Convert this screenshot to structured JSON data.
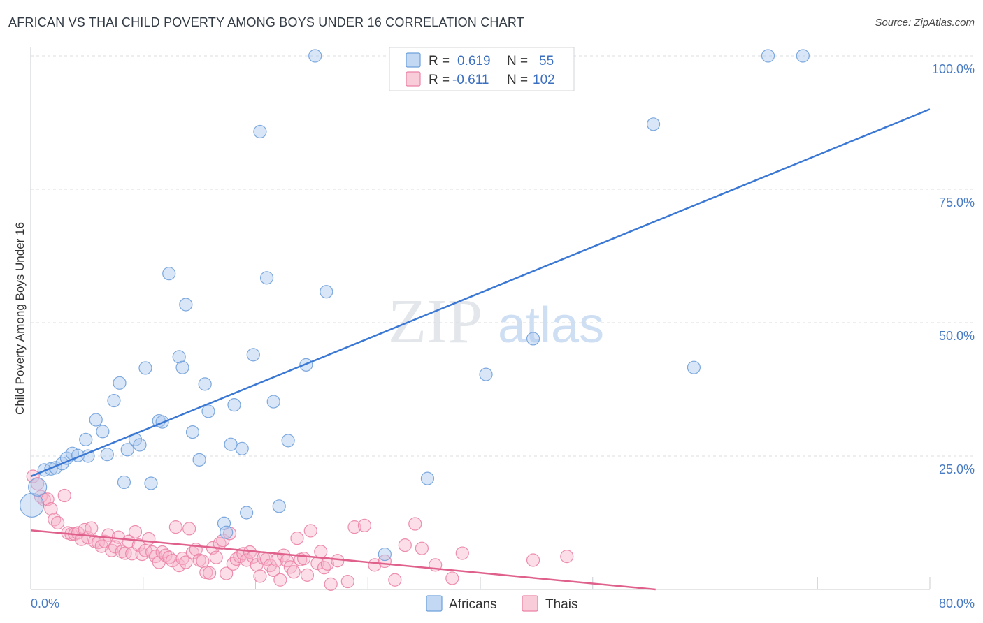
{
  "header": {
    "title": "AFRICAN VS THAI CHILD POVERTY AMONG BOYS UNDER 16 CORRELATION CHART",
    "source": "Source: ZipAtlas.com"
  },
  "watermark": {
    "part1": "ZIP",
    "part2": "atlas"
  },
  "colors": {
    "africans": "#6fa0dc",
    "africans_fill": "#aac8ee",
    "africans_line": "#3a78d4",
    "thais": "#ec82a6",
    "thais_fill": "#f6b6cb",
    "thais_line": "#e0608c",
    "tick_text": "#4a7cc4",
    "grid": "#d8dce2"
  },
  "stats_legend": {
    "rows": [
      {
        "r_label": "R =",
        "r_value": "0.619",
        "n_label": "N =",
        "n_value": "55"
      },
      {
        "r_label": "R =",
        "r_value": "-0.611",
        "n_label": "N =",
        "n_value": "102"
      }
    ]
  },
  "bottom_legend": {
    "items": [
      "Africans",
      "Thais"
    ]
  },
  "chart_data": {
    "type": "scatter",
    "title": "AFRICAN VS THAI CHILD POVERTY AMONG BOYS UNDER 16 CORRELATION CHART",
    "xlabel": "",
    "ylabel": "Child Poverty Among Boys Under 16",
    "xlim": [
      0,
      80
    ],
    "ylim": [
      0,
      100
    ],
    "x_ticks": [
      "0.0%",
      "80.0%"
    ],
    "y_ticks": [
      "25.0%",
      "50.0%",
      "75.0%",
      "100.0%"
    ],
    "y_tick_values": [
      25,
      50,
      75,
      100
    ],
    "grid": true,
    "legend_position": "top-center",
    "series": [
      {
        "name": "Africans",
        "r": 0.619,
        "n": 55,
        "trend": {
          "x": [
            0,
            80
          ],
          "y": [
            21.2,
            90.0
          ]
        },
        "points": [
          [
            0.1,
            15.8
          ],
          [
            0.6,
            19.2
          ],
          [
            1.2,
            22.4
          ],
          [
            1.8,
            22.6
          ],
          [
            2.2,
            22.8
          ],
          [
            2.8,
            23.6
          ],
          [
            3.2,
            24.6
          ],
          [
            3.7,
            25.5
          ],
          [
            4.2,
            25.1
          ],
          [
            5.1,
            25.0
          ],
          [
            4.9,
            28.1
          ],
          [
            5.8,
            31.8
          ],
          [
            6.4,
            29.6
          ],
          [
            6.8,
            25.3
          ],
          [
            7.4,
            35.4
          ],
          [
            7.9,
            38.7
          ],
          [
            8.3,
            20.1
          ],
          [
            8.6,
            26.2
          ],
          [
            9.3,
            28.1
          ],
          [
            9.7,
            27.1
          ],
          [
            10.2,
            41.5
          ],
          [
            10.7,
            19.9
          ],
          [
            11.4,
            31.6
          ],
          [
            11.7,
            31.4
          ],
          [
            12.3,
            59.2
          ],
          [
            13.2,
            43.6
          ],
          [
            13.5,
            41.6
          ],
          [
            13.8,
            53.4
          ],
          [
            14.4,
            29.5
          ],
          [
            15.0,
            24.3
          ],
          [
            15.5,
            38.5
          ],
          [
            15.8,
            33.4
          ],
          [
            17.2,
            12.4
          ],
          [
            17.4,
            10.7
          ],
          [
            17.8,
            27.2
          ],
          [
            18.1,
            34.6
          ],
          [
            18.8,
            26.4
          ],
          [
            19.2,
            14.4
          ],
          [
            19.8,
            44.0
          ],
          [
            20.4,
            85.8
          ],
          [
            21.0,
            58.4
          ],
          [
            21.6,
            35.2
          ],
          [
            22.1,
            15.6
          ],
          [
            22.9,
            27.9
          ],
          [
            24.5,
            42.1
          ],
          [
            25.3,
            100.0
          ],
          [
            26.3,
            55.8
          ],
          [
            31.5,
            6.6
          ],
          [
            35.3,
            20.8
          ],
          [
            40.5,
            40.3
          ],
          [
            44.7,
            47.0
          ],
          [
            55.4,
            87.2
          ],
          [
            59.0,
            41.6
          ],
          [
            65.6,
            100.0
          ],
          [
            68.7,
            100.0
          ]
        ]
      },
      {
        "name": "Thais",
        "r": -0.611,
        "n": 102,
        "trend": {
          "x": [
            0,
            55.6
          ],
          "y": [
            11.1,
            0.0
          ]
        },
        "points": [
          [
            0.2,
            21.2
          ],
          [
            0.6,
            19.8
          ],
          [
            0.9,
            17.4
          ],
          [
            1.2,
            16.8
          ],
          [
            1.5,
            16.9
          ],
          [
            1.8,
            15.1
          ],
          [
            2.1,
            13.1
          ],
          [
            2.4,
            12.5
          ],
          [
            3.0,
            17.6
          ],
          [
            3.3,
            10.6
          ],
          [
            3.6,
            10.4
          ],
          [
            3.9,
            10.4
          ],
          [
            4.2,
            10.6
          ],
          [
            4.5,
            9.4
          ],
          [
            4.8,
            11.2
          ],
          [
            5.1,
            9.7
          ],
          [
            5.4,
            11.5
          ],
          [
            5.7,
            9.0
          ],
          [
            6.0,
            8.8
          ],
          [
            6.3,
            8.1
          ],
          [
            6.6,
            9.0
          ],
          [
            6.9,
            10.2
          ],
          [
            7.2,
            7.3
          ],
          [
            7.5,
            8.0
          ],
          [
            7.8,
            9.8
          ],
          [
            8.1,
            7.1
          ],
          [
            8.4,
            6.8
          ],
          [
            8.7,
            9.0
          ],
          [
            9.0,
            6.7
          ],
          [
            9.3,
            10.8
          ],
          [
            9.6,
            8.3
          ],
          [
            9.9,
            6.6
          ],
          [
            10.2,
            7.3
          ],
          [
            10.5,
            9.5
          ],
          [
            10.8,
            7.0
          ],
          [
            11.1,
            6.2
          ],
          [
            11.4,
            5.1
          ],
          [
            11.7,
            7.0
          ],
          [
            12.0,
            6.4
          ],
          [
            12.3,
            6.0
          ],
          [
            12.6,
            5.4
          ],
          [
            12.9,
            11.7
          ],
          [
            13.2,
            4.5
          ],
          [
            13.5,
            5.8
          ],
          [
            13.8,
            5.1
          ],
          [
            14.1,
            11.4
          ],
          [
            14.4,
            6.9
          ],
          [
            14.7,
            7.5
          ],
          [
            15.0,
            5.5
          ],
          [
            15.3,
            5.3
          ],
          [
            15.6,
            3.2
          ],
          [
            15.9,
            3.1
          ],
          [
            16.2,
            7.8
          ],
          [
            16.5,
            6.0
          ],
          [
            16.8,
            8.6
          ],
          [
            17.1,
            9.2
          ],
          [
            17.4,
            3.0
          ],
          [
            17.7,
            10.5
          ],
          [
            18.0,
            4.8
          ],
          [
            18.3,
            5.7
          ],
          [
            18.6,
            6.2
          ],
          [
            18.9,
            6.7
          ],
          [
            19.2,
            5.5
          ],
          [
            19.5,
            7.0
          ],
          [
            19.8,
            6.1
          ],
          [
            20.1,
            4.6
          ],
          [
            20.4,
            2.5
          ],
          [
            20.7,
            5.9
          ],
          [
            21.0,
            5.7
          ],
          [
            21.3,
            4.5
          ],
          [
            21.6,
            3.6
          ],
          [
            21.9,
            5.5
          ],
          [
            22.2,
            1.8
          ],
          [
            22.5,
            6.4
          ],
          [
            22.8,
            5.4
          ],
          [
            23.1,
            4.2
          ],
          [
            23.4,
            3.3
          ],
          [
            23.7,
            9.6
          ],
          [
            24.0,
            5.6
          ],
          [
            24.3,
            5.8
          ],
          [
            24.6,
            2.7
          ],
          [
            24.9,
            11.0
          ],
          [
            25.5,
            4.9
          ],
          [
            25.8,
            7.1
          ],
          [
            26.1,
            4.1
          ],
          [
            26.4,
            4.8
          ],
          [
            26.7,
            1.0
          ],
          [
            27.3,
            5.4
          ],
          [
            28.2,
            1.5
          ],
          [
            28.8,
            11.7
          ],
          [
            29.7,
            12.0
          ],
          [
            30.6,
            4.6
          ],
          [
            31.5,
            5.3
          ],
          [
            32.4,
            1.8
          ],
          [
            33.3,
            8.3
          ],
          [
            34.2,
            12.3
          ],
          [
            34.8,
            7.7
          ],
          [
            36.0,
            4.6
          ],
          [
            37.5,
            2.1
          ],
          [
            38.4,
            6.8
          ],
          [
            44.7,
            5.5
          ],
          [
            47.7,
            6.2
          ]
        ]
      }
    ]
  }
}
